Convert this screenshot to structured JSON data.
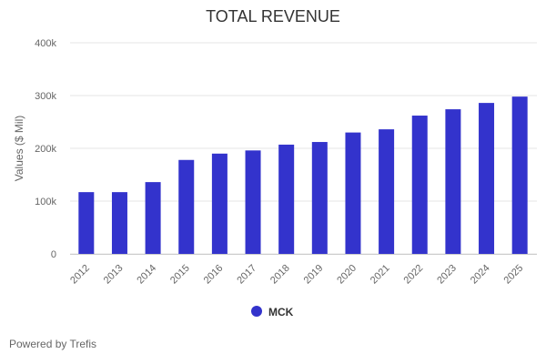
{
  "chart_data": {
    "type": "bar",
    "title": "TOTAL REVENUE",
    "ylabel": "Values ($ Mil)",
    "xlabel": "",
    "categories": [
      "2012",
      "2013",
      "2014",
      "2015",
      "2016",
      "2017",
      "2018",
      "2019",
      "2020",
      "2021",
      "2022",
      "2023",
      "2024",
      "2025"
    ],
    "series": [
      {
        "name": "MCK",
        "color": "#3333cc",
        "values": [
          117000,
          117000,
          136000,
          178000,
          190000,
          196000,
          207000,
          212000,
          230000,
          236000,
          262000,
          274000,
          286000,
          298000
        ]
      }
    ],
    "ylim": [
      0,
      400000
    ],
    "yticks": [
      0,
      100000,
      200000,
      300000,
      400000
    ],
    "ytick_labels": [
      "0",
      "100k",
      "200k",
      "300k",
      "400k"
    ],
    "grid": true,
    "legend_position": "bottom-center"
  },
  "credit": "Powered by Trefis"
}
